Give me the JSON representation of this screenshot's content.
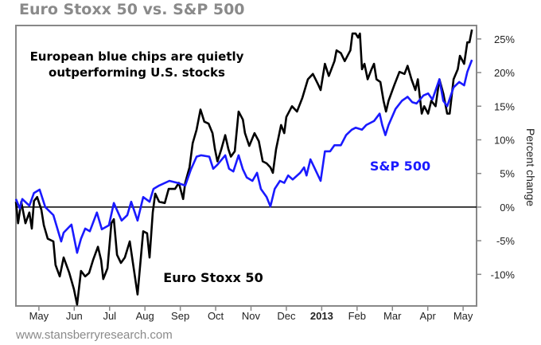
{
  "title": "Euro Stoxx 50 vs. S&P 500",
  "footer": "www.stansberryresearch.com",
  "chart_data": {
    "type": "line",
    "title": "Euro Stoxx 50 vs. S&P 500",
    "annotation": [
      "European blue chips are quietly",
      "outperforming U.S. stocks"
    ],
    "xlabel": "",
    "ylabel": "Percent change",
    "x_units": "months since May 2012",
    "xlim": [
      -0.65,
      12.38
    ],
    "ylim": [
      -14.7,
      27.0
    ],
    "x_ticks": [
      {
        "x": 0,
        "label": "May",
        "bold": false
      },
      {
        "x": 1,
        "label": "Jun",
        "bold": false
      },
      {
        "x": 2,
        "label": "Jul",
        "bold": false
      },
      {
        "x": 3,
        "label": "Aug",
        "bold": false
      },
      {
        "x": 4,
        "label": "Sep",
        "bold": false
      },
      {
        "x": 5,
        "label": "Oct",
        "bold": false
      },
      {
        "x": 6,
        "label": "Nov",
        "bold": false
      },
      {
        "x": 7,
        "label": "Dec",
        "bold": false
      },
      {
        "x": 8,
        "label": "2013",
        "bold": true
      },
      {
        "x": 9,
        "label": "Feb",
        "bold": false
      },
      {
        "x": 10,
        "label": "Mar",
        "bold": false
      },
      {
        "x": 11,
        "label": "Apr",
        "bold": false
      },
      {
        "x": 12,
        "label": "May",
        "bold": false
      }
    ],
    "y_ticks": [
      {
        "y": 25,
        "label": "25%"
      },
      {
        "y": 20,
        "label": "20%"
      },
      {
        "y": 15,
        "label": "15%"
      },
      {
        "y": 10,
        "label": "10%"
      },
      {
        "y": 5,
        "label": "5%"
      },
      {
        "y": 0,
        "label": "0%"
      },
      {
        "y": -5,
        "label": "-5%"
      },
      {
        "y": -10,
        "label": "-10%"
      }
    ],
    "reference_line": 0,
    "grid": false,
    "series": [
      {
        "name": "Euro Stoxx 50",
        "color": "#000000",
        "label_position": "bottom-center",
        "points": [
          [
            -0.65,
            0.8
          ],
          [
            -0.59,
            -2.4
          ],
          [
            -0.5,
            0.8
          ],
          [
            -0.38,
            -2.4
          ],
          [
            -0.27,
            -0.8
          ],
          [
            -0.2,
            -3.2
          ],
          [
            -0.14,
            0.9
          ],
          [
            -0.05,
            1.5
          ],
          [
            0.07,
            -0.4
          ],
          [
            0.14,
            -2.7
          ],
          [
            0.25,
            -4.7
          ],
          [
            0.41,
            -5.1
          ],
          [
            0.47,
            -8.6
          ],
          [
            0.59,
            -10.3
          ],
          [
            0.7,
            -7.5
          ],
          [
            0.86,
            -9.8
          ],
          [
            0.99,
            -12.2
          ],
          [
            1.08,
            -14.5
          ],
          [
            1.19,
            -9.5
          ],
          [
            1.31,
            -10.3
          ],
          [
            1.42,
            -9.8
          ],
          [
            1.53,
            -7.9
          ],
          [
            1.67,
            -5.9
          ],
          [
            1.76,
            -7.9
          ],
          [
            1.82,
            -10.7
          ],
          [
            1.94,
            -9.1
          ],
          [
            2.05,
            -2.4
          ],
          [
            2.12,
            -1.8
          ],
          [
            2.21,
            -7.1
          ],
          [
            2.32,
            -8.3
          ],
          [
            2.43,
            -7.5
          ],
          [
            2.57,
            -5.1
          ],
          [
            2.79,
            -13.0
          ],
          [
            2.95,
            -3.6
          ],
          [
            3.06,
            -3.9
          ],
          [
            3.13,
            -7.5
          ],
          [
            3.22,
            -0.8
          ],
          [
            3.29,
            2.0
          ],
          [
            3.4,
            0.8
          ],
          [
            3.56,
            0.6
          ],
          [
            3.67,
            2.7
          ],
          [
            3.85,
            2.7
          ],
          [
            3.96,
            3.6
          ],
          [
            4.08,
            1.2
          ],
          [
            4.14,
            3.6
          ],
          [
            4.26,
            5.9
          ],
          [
            4.35,
            9.5
          ],
          [
            4.46,
            11.5
          ],
          [
            4.57,
            14.5
          ],
          [
            4.68,
            12.7
          ],
          [
            4.8,
            12.4
          ],
          [
            4.91,
            11.0
          ],
          [
            4.98,
            8.6
          ],
          [
            5.05,
            6.8
          ],
          [
            5.16,
            8.6
          ],
          [
            5.27,
            10.7
          ],
          [
            5.36,
            8.6
          ],
          [
            5.43,
            7.5
          ],
          [
            5.54,
            8.3
          ],
          [
            5.65,
            14.2
          ],
          [
            5.77,
            13.0
          ],
          [
            5.83,
            11.0
          ],
          [
            5.95,
            9.1
          ],
          [
            6.1,
            11.0
          ],
          [
            6.22,
            9.8
          ],
          [
            6.33,
            6.8
          ],
          [
            6.44,
            6.5
          ],
          [
            6.55,
            5.9
          ],
          [
            6.62,
            5.1
          ],
          [
            6.71,
            8.6
          ],
          [
            6.85,
            12.2
          ],
          [
            6.94,
            11.0
          ],
          [
            7.0,
            13.4
          ],
          [
            7.16,
            15.0
          ],
          [
            7.3,
            14.2
          ],
          [
            7.45,
            16.2
          ],
          [
            7.61,
            19.0
          ],
          [
            7.75,
            19.8
          ],
          [
            7.91,
            18.1
          ],
          [
            7.97,
            17.4
          ],
          [
            8.09,
            21.3
          ],
          [
            8.2,
            19.5
          ],
          [
            8.36,
            21.7
          ],
          [
            8.42,
            23.3
          ],
          [
            8.54,
            22.9
          ],
          [
            8.65,
            21.7
          ],
          [
            8.81,
            23.3
          ],
          [
            8.87,
            25.8
          ],
          [
            8.96,
            25.8
          ],
          [
            9.03,
            25.2
          ],
          [
            9.08,
            25.8
          ],
          [
            9.14,
            20.5
          ],
          [
            9.21,
            21.3
          ],
          [
            9.3,
            19.0
          ],
          [
            9.41,
            20.5
          ],
          [
            9.48,
            21.3
          ],
          [
            9.55,
            19.0
          ],
          [
            9.66,
            18.6
          ],
          [
            9.75,
            15.8
          ],
          [
            9.82,
            14.2
          ],
          [
            9.89,
            15.8
          ],
          [
            10.05,
            18.1
          ],
          [
            10.2,
            20.1
          ],
          [
            10.34,
            19.8
          ],
          [
            10.43,
            21.0
          ],
          [
            10.54,
            19.0
          ],
          [
            10.65,
            17.4
          ],
          [
            10.72,
            19.0
          ],
          [
            10.83,
            13.9
          ],
          [
            10.9,
            15.0
          ],
          [
            11.01,
            13.9
          ],
          [
            11.1,
            15.8
          ],
          [
            11.22,
            15.0
          ],
          [
            11.33,
            19.0
          ],
          [
            11.44,
            16.9
          ],
          [
            11.55,
            13.9
          ],
          [
            11.62,
            13.9
          ],
          [
            11.73,
            19.0
          ],
          [
            11.85,
            20.5
          ],
          [
            11.91,
            22.5
          ],
          [
            12.03,
            21.3
          ],
          [
            12.12,
            24.5
          ],
          [
            12.18,
            24.5
          ],
          [
            12.25,
            26.4
          ]
        ]
      },
      {
        "name": "S&P 500",
        "color": "#1a1aff",
        "label_position": "right-middle",
        "points": [
          [
            -0.65,
            1.2
          ],
          [
            -0.54,
            -0.2
          ],
          [
            -0.47,
            1.2
          ],
          [
            -0.27,
            0.2
          ],
          [
            -0.14,
            2.1
          ],
          [
            0.02,
            2.6
          ],
          [
            0.18,
            0.0
          ],
          [
            0.41,
            -1.2
          ],
          [
            0.63,
            -5.1
          ],
          [
            0.7,
            -3.8
          ],
          [
            0.92,
            -2.6
          ],
          [
            1.08,
            -6.8
          ],
          [
            1.19,
            -4.7
          ],
          [
            1.31,
            -3.2
          ],
          [
            1.44,
            -3.6
          ],
          [
            1.64,
            -0.8
          ],
          [
            1.78,
            -3.3
          ],
          [
            1.98,
            -2.7
          ],
          [
            2.12,
            0.6
          ],
          [
            2.34,
            -2.0
          ],
          [
            2.5,
            -1.2
          ],
          [
            2.61,
            0.8
          ],
          [
            2.79,
            -2.0
          ],
          [
            2.95,
            1.5
          ],
          [
            3.13,
            0.8
          ],
          [
            3.24,
            2.7
          ],
          [
            3.4,
            3.2
          ],
          [
            3.69,
            3.9
          ],
          [
            3.92,
            3.6
          ],
          [
            4.14,
            3.2
          ],
          [
            4.3,
            5.6
          ],
          [
            4.46,
            7.5
          ],
          [
            4.59,
            7.7
          ],
          [
            4.82,
            7.5
          ],
          [
            4.93,
            5.7
          ],
          [
            5.05,
            6.3
          ],
          [
            5.27,
            7.7
          ],
          [
            5.38,
            5.7
          ],
          [
            5.5,
            5.3
          ],
          [
            5.65,
            7.7
          ],
          [
            5.77,
            5.6
          ],
          [
            5.88,
            4.4
          ],
          [
            6.04,
            3.9
          ],
          [
            6.17,
            5.1
          ],
          [
            6.28,
            2.7
          ],
          [
            6.44,
            1.5
          ],
          [
            6.55,
            0.1
          ],
          [
            6.67,
            2.7
          ],
          [
            6.82,
            3.9
          ],
          [
            6.94,
            3.6
          ],
          [
            7.05,
            4.7
          ],
          [
            7.18,
            4.1
          ],
          [
            7.39,
            5.1
          ],
          [
            7.5,
            5.9
          ],
          [
            7.57,
            4.7
          ],
          [
            7.68,
            7.1
          ],
          [
            7.79,
            5.9
          ],
          [
            7.97,
            3.9
          ],
          [
            8.09,
            8.3
          ],
          [
            8.24,
            8.3
          ],
          [
            8.36,
            9.2
          ],
          [
            8.54,
            9.2
          ],
          [
            8.69,
            10.7
          ],
          [
            8.85,
            11.5
          ],
          [
            8.96,
            11.8
          ],
          [
            9.14,
            11.5
          ],
          [
            9.26,
            12.2
          ],
          [
            9.48,
            12.8
          ],
          [
            9.64,
            13.9
          ],
          [
            9.71,
            12.2
          ],
          [
            9.8,
            10.7
          ],
          [
            9.89,
            12.2
          ],
          [
            10.09,
            14.6
          ],
          [
            10.27,
            15.8
          ],
          [
            10.43,
            16.4
          ],
          [
            10.56,
            15.6
          ],
          [
            10.68,
            15.4
          ],
          [
            10.88,
            16.6
          ],
          [
            11.01,
            16.9
          ],
          [
            11.13,
            16.0
          ],
          [
            11.33,
            19.0
          ],
          [
            11.44,
            15.8
          ],
          [
            11.55,
            15.0
          ],
          [
            11.73,
            17.8
          ],
          [
            11.89,
            18.6
          ],
          [
            12.03,
            18.1
          ],
          [
            12.12,
            20.1
          ],
          [
            12.25,
            21.9
          ]
        ]
      }
    ]
  }
}
